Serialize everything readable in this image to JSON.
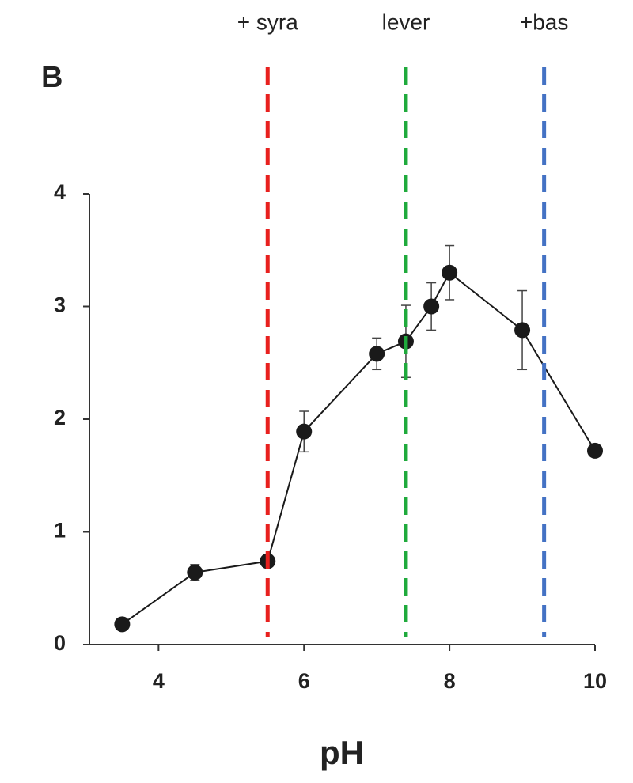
{
  "chart_data": {
    "type": "line",
    "panel_label": "B",
    "xlabel": "pH",
    "x": [
      3.5,
      4.5,
      5.5,
      6,
      7,
      7.4,
      7.75,
      8,
      9,
      10
    ],
    "series": [
      {
        "color": "#1a1a1a",
        "values": [
          0.18,
          0.64,
          0.74,
          1.89,
          2.58,
          2.69,
          3.0,
          3.3,
          2.79,
          1.72
        ],
        "errors": [
          null,
          0.07,
          null,
          0.18,
          0.14,
          0.32,
          0.21,
          0.24,
          0.35,
          null
        ]
      }
    ],
    "xlim": [
      3.05,
      10
    ],
    "xticks": [
      4,
      6,
      8,
      10
    ],
    "ylim": [
      0,
      4
    ],
    "yticks": [
      0,
      1,
      2,
      3,
      4
    ],
    "vlines": [
      {
        "x": 5.5,
        "label": "+ syra",
        "color": "#e8201e"
      },
      {
        "x": 7.4,
        "label": "lever",
        "color": "#1faa3c"
      },
      {
        "x": 9.3,
        "label": "+bas",
        "color": "#4472c4"
      }
    ]
  }
}
